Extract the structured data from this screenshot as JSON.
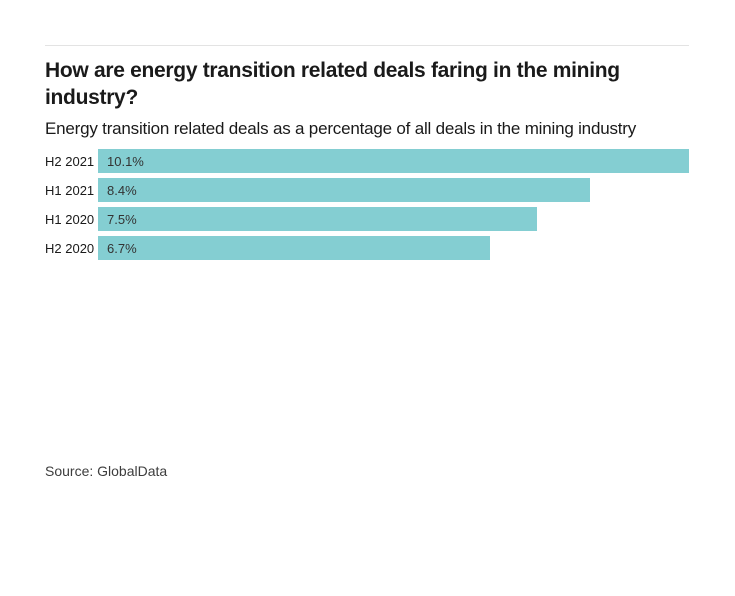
{
  "chart_data": {
    "type": "bar",
    "orientation": "horizontal",
    "title": "How are energy transition related deals faring in the mining industry?",
    "subtitle": "Energy transition related deals as a percentage of all deals in the mining industry",
    "categories": [
      "H2 2021",
      "H1 2021",
      "H1 2020",
      "H2 2020"
    ],
    "values": [
      10.1,
      8.4,
      7.5,
      6.7
    ],
    "value_labels": [
      "10.1%",
      "8.4%",
      "7.5%",
      "6.7%"
    ],
    "xlabel": "",
    "ylabel": "",
    "xlim": [
      0,
      10.1
    ],
    "grid": false,
    "legend": false,
    "bar_color": "#84ced2",
    "value_label_color": "#333333",
    "source": "Source: GlobalData"
  },
  "colors": {
    "bar": "#84ced2",
    "divider": "#e3e3e3",
    "title_text": "#1a1a1a",
    "source_text": "#3d3d3d",
    "background": "#ffffff"
  }
}
